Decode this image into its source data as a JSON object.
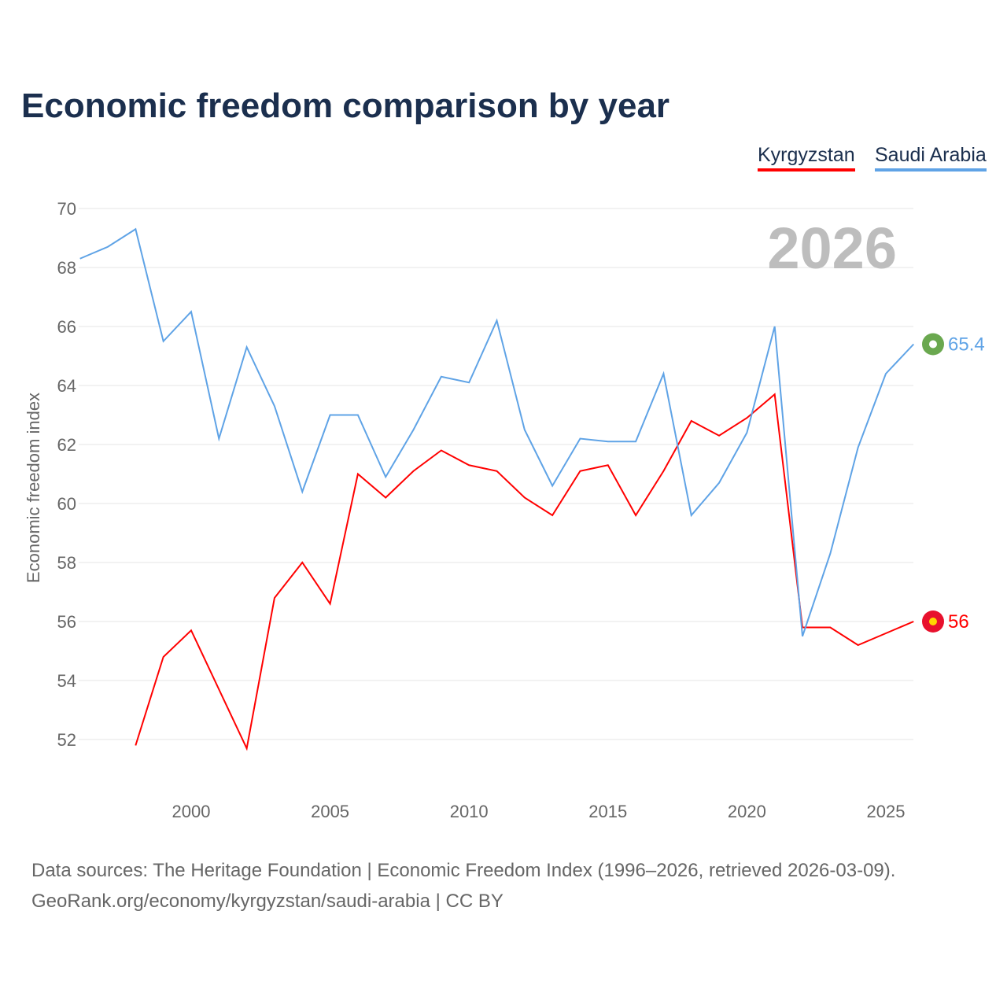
{
  "chart_data": {
    "type": "line",
    "title": "Economic freedom comparison by year",
    "xlabel": "",
    "ylabel": "Economic freedom index",
    "xlim": [
      1996,
      2026
    ],
    "ylim": [
      51,
      70.5
    ],
    "yticks": [
      52,
      54,
      56,
      58,
      60,
      62,
      64,
      66,
      68,
      70
    ],
    "xticks": [
      2000,
      2005,
      2010,
      2015,
      2020,
      2025
    ],
    "grid": true,
    "legend_position": "top-right",
    "watermark_year": "2026",
    "series": [
      {
        "name": "Kyrgyzstan",
        "color": "#ff0000",
        "end_label": "56",
        "x": [
          1998,
          1999,
          2000,
          2001,
          2002,
          2003,
          2004,
          2005,
          2006,
          2007,
          2008,
          2009,
          2010,
          2011,
          2012,
          2013,
          2014,
          2015,
          2016,
          2017,
          2018,
          2019,
          2020,
          2021,
          2022,
          2023,
          2024,
          2025,
          2026
        ],
        "values": [
          51.8,
          54.8,
          55.7,
          53.7,
          51.7,
          56.8,
          58.0,
          56.6,
          61.0,
          60.2,
          61.1,
          61.8,
          61.3,
          61.1,
          60.2,
          59.6,
          61.1,
          61.3,
          59.6,
          61.1,
          62.8,
          62.3,
          62.9,
          63.7,
          55.8,
          55.8,
          55.2,
          55.6,
          56.0
        ]
      },
      {
        "name": "Saudi Arabia",
        "color": "#5fa3e6",
        "end_label": "65.4",
        "x": [
          1996,
          1997,
          1998,
          1999,
          2000,
          2001,
          2002,
          2003,
          2004,
          2005,
          2006,
          2007,
          2008,
          2009,
          2010,
          2011,
          2012,
          2013,
          2014,
          2015,
          2016,
          2017,
          2018,
          2019,
          2020,
          2021,
          2022,
          2023,
          2024,
          2025,
          2026
        ],
        "values": [
          68.3,
          68.7,
          69.3,
          65.5,
          66.5,
          62.2,
          65.3,
          63.3,
          60.4,
          63.0,
          63.0,
          60.9,
          62.5,
          64.3,
          64.1,
          66.2,
          62.5,
          60.6,
          62.2,
          62.1,
          62.1,
          64.4,
          59.6,
          60.7,
          62.4,
          66.0,
          55.5,
          58.3,
          61.9,
          64.4,
          65.4
        ]
      }
    ]
  },
  "source": {
    "line1": "Data sources: The Heritage Foundation | Economic Freedom Index (1996–2026, retrieved 2026-03-09).",
    "line2": "GeoRank.org/economy/kyrgyzstan/saudi-arabia | CC BY"
  }
}
